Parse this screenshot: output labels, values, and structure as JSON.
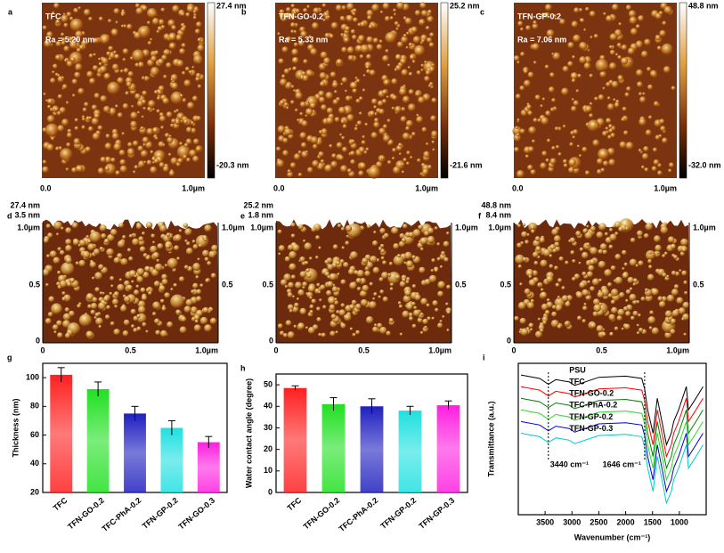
{
  "afm_2d": [
    {
      "letter": "a",
      "title": "TFC",
      "roughness": "Ra = 5.20 nm",
      "max": "27.4 nm",
      "min": "-20.3 nm",
      "x_start": "0.0",
      "x_end": "1.0µm"
    },
    {
      "letter": "b",
      "title": "TFN-GO-0.2",
      "roughness": "Ra = 5.33 nm",
      "max": "25.2 nm",
      "min": "-21.6 nm",
      "x_start": "0.0",
      "x_end": "1.0µm"
    },
    {
      "letter": "c",
      "title": "TFN-GP-0.2",
      "roughness": "Ra = 7.06 nm",
      "max": "48.8 nm",
      "min": "-32.0 nm",
      "x_start": "0.0",
      "x_end": "1.0µm"
    }
  ],
  "afm_3d": [
    {
      "letter": "d",
      "z_max": "27.4 nm",
      "z_mid": "3.5 nm",
      "y_labels": [
        "1.0µm",
        "0.5",
        "0"
      ],
      "x_labels": [
        "0",
        "0.5",
        "1.0µm"
      ],
      "right_labels": [
        "1.0µm",
        "0.5"
      ]
    },
    {
      "letter": "e",
      "z_max": "25.2 nm",
      "z_mid": "1.8 nm",
      "y_labels": [
        "1.0µm",
        "0.5",
        "0"
      ],
      "x_labels": [
        "0",
        "0.5",
        "1.0µm"
      ],
      "right_labels": [
        "1.0µm",
        "0.5"
      ]
    },
    {
      "letter": "f",
      "z_max": "48.8 nm",
      "z_mid": "8.4 nm",
      "y_labels": [
        "1.0µm",
        "0.5",
        "0"
      ],
      "x_labels": [
        "0",
        "0.5",
        "1.0µm"
      ],
      "right_labels": [
        "1.0µm",
        "0.5"
      ]
    }
  ],
  "chart_data": [
    {
      "type": "bar",
      "letter": "g",
      "ylabel": "Thickness (nm)",
      "categories": [
        "TFC",
        "TFN-GO-0.2",
        "TFC-PhA-0.2",
        "TFN-GP-0.2",
        "TFN-GO-0.3"
      ],
      "values": [
        102,
        92,
        75,
        65,
        55
      ],
      "errors": [
        5,
        5,
        5,
        5,
        4
      ],
      "colors": [
        "#ff2020",
        "#22e022",
        "#2020c0",
        "#20e0e0",
        "#ff20e0"
      ],
      "ylim": [
        20,
        110
      ],
      "yticks": [
        20,
        40,
        60,
        80,
        100
      ]
    },
    {
      "type": "bar",
      "letter": "h",
      "ylabel": "Water contact angle (degree)",
      "categories": [
        "TFC",
        "TFN-GO-0.2",
        "TFC-PhA-0.2",
        "TFN-GP-0.2",
        "TFN-GP-0.3"
      ],
      "values": [
        48.5,
        41,
        40,
        38,
        40.5
      ],
      "errors": [
        1,
        3,
        3.5,
        2,
        2
      ],
      "colors": [
        "#ff2020",
        "#22e022",
        "#2020c0",
        "#20e0e0",
        "#ff20e0"
      ],
      "ylim": [
        0,
        55
      ],
      "yticks": [
        0,
        10,
        20,
        30,
        40,
        50
      ]
    },
    {
      "type": "line",
      "letter": "i",
      "xlabel": "Wavenumber (cm⁻¹)",
      "ylabel": "Transmittance (a.u.)",
      "x": [
        3950,
        3600,
        3440,
        3300,
        3050,
        2950,
        2500,
        2000,
        1700,
        1646,
        1590,
        1490,
        1410,
        1325,
        1240,
        1150,
        1105,
        1015,
        870,
        830,
        690,
        560
      ],
      "series": [
        {
          "name": "PSU",
          "color": "#000000",
          "values": [
            10,
            9.7,
            9.2,
            9.6,
            9.4,
            9.1,
            9.8,
            9.9,
            9.7,
            8.8,
            7,
            5,
            8,
            6,
            4,
            5,
            6,
            7,
            9,
            7,
            8,
            9
          ]
        },
        {
          "name": "TFC",
          "color": "#ff0000",
          "values": [
            9,
            8.7,
            8.2,
            8.6,
            8.4,
            8.1,
            8.8,
            8.9,
            8.7,
            7.8,
            6,
            4,
            7,
            5,
            3,
            4,
            5,
            6,
            8,
            6,
            7,
            8
          ]
        },
        {
          "name": "TFN-GO-0.2",
          "color": "#008000",
          "values": [
            8,
            7.7,
            7.2,
            7.6,
            7.4,
            7.1,
            7.8,
            7.9,
            7.7,
            6.8,
            5,
            3,
            6,
            4,
            2,
            3,
            4,
            5,
            7,
            5,
            6,
            7
          ]
        },
        {
          "name": "TFC-PhA-0.2",
          "color": "#22dd22",
          "values": [
            7,
            6.7,
            6.2,
            6.6,
            6.4,
            6.1,
            6.8,
            6.9,
            6.7,
            5.8,
            4,
            2,
            5,
            3,
            1,
            2,
            3,
            4,
            6,
            4,
            5,
            6
          ]
        },
        {
          "name": "TFN-GP-0.2",
          "color": "#0000cc",
          "values": [
            6,
            5.7,
            5.2,
            5.6,
            5.4,
            5.1,
            5.8,
            5.9,
            5.7,
            4.8,
            3,
            1,
            4,
            2,
            0,
            1,
            2,
            3,
            5,
            3,
            4,
            5
          ]
        },
        {
          "name": "TFN-GP-0.3",
          "color": "#00cccc",
          "values": [
            5,
            4.7,
            4.2,
            4.6,
            4.4,
            4.1,
            4.8,
            4.9,
            4.7,
            3.8,
            2,
            0,
            3,
            1,
            -1,
            0,
            1,
            2,
            4,
            2,
            3,
            4
          ]
        }
      ],
      "annotations": [
        {
          "text": "3440 cm⁻¹",
          "x": 3440
        },
        {
          "text": "1646 cm⁻¹",
          "x": 1646
        }
      ],
      "xlim": [
        4000,
        500
      ],
      "ylim": [
        -2,
        11
      ],
      "xticks": [
        3500,
        3000,
        2500,
        2000,
        1500,
        1000
      ]
    }
  ]
}
